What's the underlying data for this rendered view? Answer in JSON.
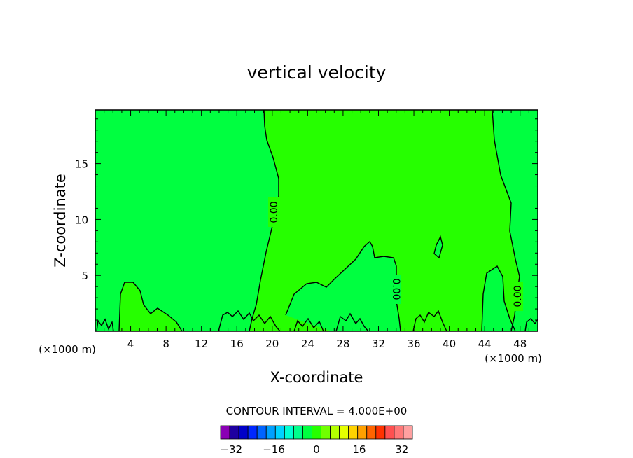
{
  "chart_data": {
    "type": "heatmap",
    "title": "vertical velocity",
    "xlabel": "X-coordinate",
    "ylabel": "Z-coordinate",
    "x_unit": "(×1000 m)",
    "x_ticks": [
      4,
      8,
      12,
      16,
      20,
      24,
      28,
      32,
      36,
      40,
      44,
      48
    ],
    "y_ticks": [
      5,
      10,
      15
    ],
    "xlim": [
      0,
      50
    ],
    "ylim": [
      0,
      19.8
    ],
    "contour_interval_label": "CONTOUR INTERVAL = 4.000E+00",
    "contour_labels": [
      "0.00",
      "0.00",
      "0.00"
    ],
    "fill_colors": {
      "negative": "#00ff40",
      "positive": "#26ff00"
    },
    "colorbar": {
      "tick_labels": [
        "−32",
        "−16",
        "0",
        "16",
        "32"
      ],
      "tick_values": [
        -32,
        -16,
        0,
        16,
        32
      ],
      "range": [
        -36,
        36
      ],
      "colors": [
        "#8a00b4",
        "#1e00a0",
        "#0000c8",
        "#0028ff",
        "#0064ff",
        "#00a0ff",
        "#00d2ff",
        "#00ffd2",
        "#00ff8c",
        "#00ff40",
        "#26ff00",
        "#70ff00",
        "#b4ff00",
        "#e6ff00",
        "#ffd200",
        "#ffa000",
        "#ff6400",
        "#ff3200",
        "#ff5050",
        "#ff7878",
        "#ffa0a0"
      ]
    }
  }
}
